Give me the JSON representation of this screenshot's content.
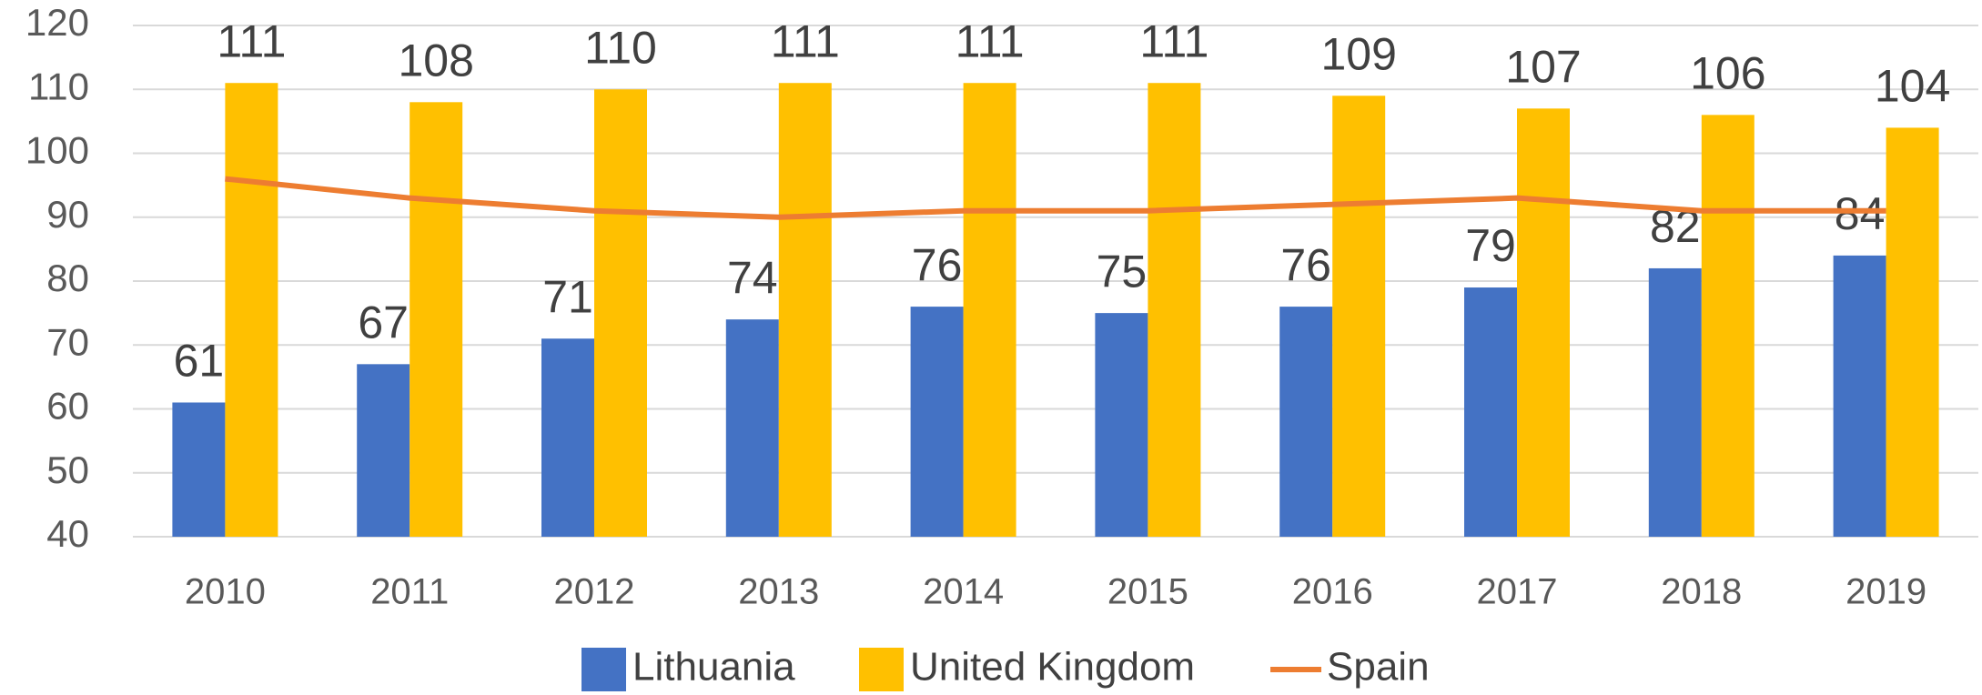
{
  "chart_data": {
    "type": "bar",
    "categories": [
      "2010",
      "2011",
      "2012",
      "2013",
      "2014",
      "2015",
      "2016",
      "2017",
      "2018",
      "2019"
    ],
    "series": [
      {
        "name": "Lithuania",
        "color": "#4472c4",
        "type": "bar",
        "values": [
          61,
          67,
          71,
          74,
          76,
          75,
          76,
          79,
          82,
          84
        ]
      },
      {
        "name": "United Kingdom",
        "color": "#ffc000",
        "type": "bar",
        "values": [
          111,
          108,
          110,
          111,
          111,
          111,
          109,
          107,
          106,
          104
        ]
      },
      {
        "name": "Spain",
        "color": "#ed7d31",
        "type": "line",
        "values": [
          96,
          93,
          91,
          90,
          91,
          91,
          92,
          93,
          91,
          91
        ]
      }
    ],
    "ylim": [
      40,
      120
    ],
    "yticks": [
      40,
      50,
      60,
      70,
      80,
      90,
      100,
      110,
      120
    ],
    "grid": true,
    "legend": "bottom"
  }
}
